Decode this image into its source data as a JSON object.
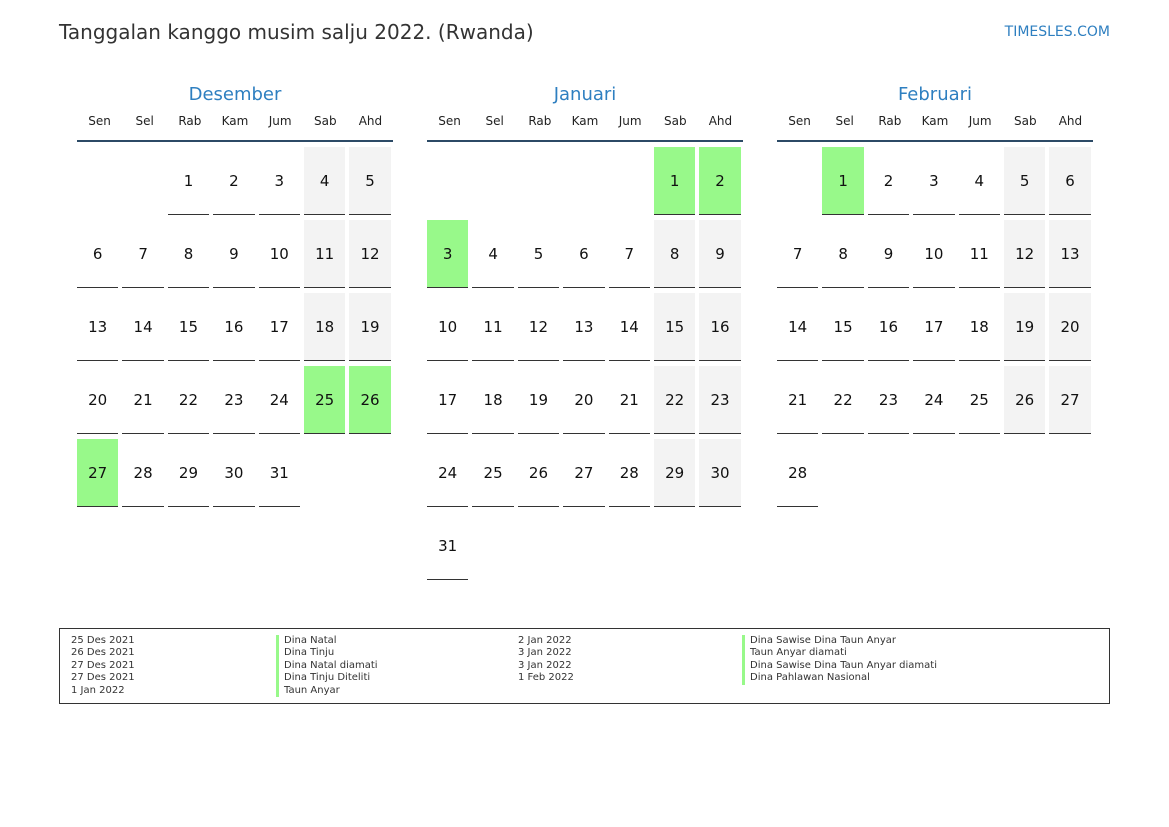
{
  "title": "Tanggalan kanggo musim salju 2022. (Rwanda)",
  "site": "TIMESLES.COM",
  "colors": {
    "accent": "#2e7fc0",
    "holiday": "#98f98a",
    "weekend": "#f3f3f3"
  },
  "weekdays": [
    "Sen",
    "Sel",
    "Rab",
    "Kam",
    "Jum",
    "Sab",
    "Ahd"
  ],
  "months": [
    {
      "name": "Desember",
      "start_offset": 2,
      "days": 31,
      "holidays": [
        25,
        26,
        27
      ]
    },
    {
      "name": "Januari",
      "start_offset": 5,
      "days": 31,
      "holidays": [
        1,
        2,
        3
      ]
    },
    {
      "name": "Februari",
      "start_offset": 1,
      "days": 28,
      "holidays": [
        1
      ]
    }
  ],
  "legend": {
    "left_dates": [
      "25 Des 2021",
      "26 Des 2021",
      "27 Des 2021",
      "27 Des 2021",
      "1 Jan 2022"
    ],
    "left_names": [
      "Dina Natal",
      "Dina Tinju",
      "Dina Natal diamati",
      "Dina Tinju Diteliti",
      "Taun Anyar"
    ],
    "right_dates": [
      "2 Jan 2022",
      "3 Jan 2022",
      "3 Jan 2022",
      "1 Feb 2022"
    ],
    "right_names": [
      "Dina Sawise Dina Taun Anyar",
      "Taun Anyar diamati",
      "Dina Sawise Dina Taun Anyar diamati",
      "Dina Pahlawan Nasional"
    ]
  }
}
